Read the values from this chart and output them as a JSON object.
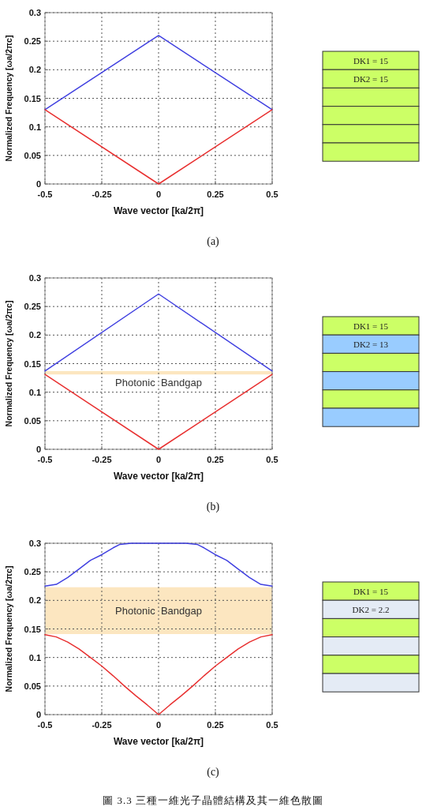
{
  "chart_data": [
    {
      "type": "line",
      "xlabel": "Wave vector [ka/2π]",
      "ylabel": "Normalized Frequency [ωa/2πc]",
      "xlim": [
        -0.5,
        0.5
      ],
      "ylim": [
        0,
        0.3
      ],
      "xticks": [
        -0.5,
        -0.25,
        0,
        0.25,
        0.5
      ],
      "yticks": [
        0,
        0.05,
        0.1,
        0.15,
        0.2,
        0.25,
        0.3
      ],
      "grid": true,
      "annotations": [
        "(a)"
      ],
      "series": [
        {
          "color": "#4040e0",
          "x": [
            -0.5,
            0,
            0.5
          ],
          "values": [
            0.13,
            0.26,
            0.13
          ]
        },
        {
          "color": "#e83030",
          "x": [
            -0.5,
            0,
            0.5
          ],
          "values": [
            0.13,
            0,
            0.13
          ]
        }
      ]
    },
    {
      "type": "other",
      "annotations": [
        "DK1 = 15",
        "DK2 = 15"
      ],
      "colors": [
        "#ccff66",
        "#ccff66",
        "#ccff66",
        "#ccff66",
        "#ccff66",
        "#ccff66"
      ]
    },
    {
      "type": "line",
      "xlabel": "Wave vector [ka/2π]",
      "ylabel": "Normalized Frequency [ωa/2πc]",
      "xlim": [
        -0.5,
        0.5
      ],
      "ylim": [
        0,
        0.3
      ],
      "xticks": [
        -0.5,
        -0.25,
        0,
        0.25,
        0.5
      ],
      "yticks": [
        0,
        0.05,
        0.1,
        0.15,
        0.2,
        0.25,
        0.3
      ],
      "grid": true,
      "annotations": [
        "(b)"
      ],
      "bands": [
        {
          "axis": "y",
          "from": 0.131,
          "to": 0.137,
          "label": "Photonic  Bandgap",
          "color": "#fce6c0"
        }
      ],
      "series": [
        {
          "color": "#4040e0",
          "x": [
            -0.5,
            0,
            0.5
          ],
          "values": [
            0.137,
            0.272,
            0.137
          ]
        },
        {
          "color": "#e83030",
          "x": [
            -0.5,
            0,
            0.5
          ],
          "values": [
            0.131,
            0,
            0.131
          ]
        }
      ]
    },
    {
      "type": "other",
      "annotations": [
        "DK1 = 15",
        "DK2 = 13"
      ],
      "colors": [
        "#ccff66",
        "#99ccff",
        "#ccff66",
        "#99ccff",
        "#ccff66",
        "#99ccff"
      ]
    },
    {
      "type": "line",
      "xlabel": "Wave vector [ka/2π]",
      "ylabel": "Normalized Frequency [ωa/2πc]",
      "xlim": [
        -0.5,
        0.5
      ],
      "ylim": [
        0,
        0.3
      ],
      "xticks": [
        -0.5,
        -0.25,
        0,
        0.25,
        0.5
      ],
      "yticks": [
        0,
        0.05,
        0.1,
        0.15,
        0.2,
        0.25,
        0.3
      ],
      "grid": true,
      "annotations": [
        "(c)",
        "圖 3.3 三種一維光子晶體結構及其一維色散圖"
      ],
      "bands": [
        {
          "axis": "y",
          "from": 0.141,
          "to": 0.223,
          "label": "Photonic  Bandgap",
          "color": "#fce6c0"
        }
      ],
      "series": [
        {
          "color": "#4040e0",
          "x": [
            -0.5,
            -0.45,
            -0.4,
            -0.35,
            -0.3,
            -0.25,
            -0.2,
            -0.17,
            -0.12,
            0,
            0.12,
            0.17,
            0.2,
            0.25,
            0.3,
            0.35,
            0.4,
            0.45,
            0.5
          ],
          "values": [
            0.225,
            0.228,
            0.24,
            0.255,
            0.27,
            0.28,
            0.292,
            0.298,
            0.3,
            0.3,
            0.3,
            0.298,
            0.292,
            0.28,
            0.27,
            0.255,
            0.24,
            0.228,
            0.225
          ]
        },
        {
          "color": "#e83030",
          "x": [
            -0.5,
            -0.45,
            -0.4,
            -0.35,
            -0.3,
            -0.25,
            -0.2,
            -0.15,
            -0.1,
            -0.05,
            0,
            0.05,
            0.1,
            0.15,
            0.2,
            0.25,
            0.3,
            0.35,
            0.4,
            0.45,
            0.5
          ],
          "values": [
            0.14,
            0.136,
            0.127,
            0.115,
            0.1,
            0.085,
            0.068,
            0.05,
            0.033,
            0.017,
            0,
            0.017,
            0.033,
            0.05,
            0.068,
            0.085,
            0.1,
            0.115,
            0.127,
            0.136,
            0.14
          ]
        }
      ]
    },
    {
      "type": "other",
      "annotations": [
        "DK1 = 15",
        "DK2 = 2.2"
      ],
      "colors": [
        "#ccff66",
        "#e4ebf5",
        "#ccff66",
        "#e4ebf5",
        "#ccff66",
        "#e4ebf5"
      ]
    }
  ]
}
